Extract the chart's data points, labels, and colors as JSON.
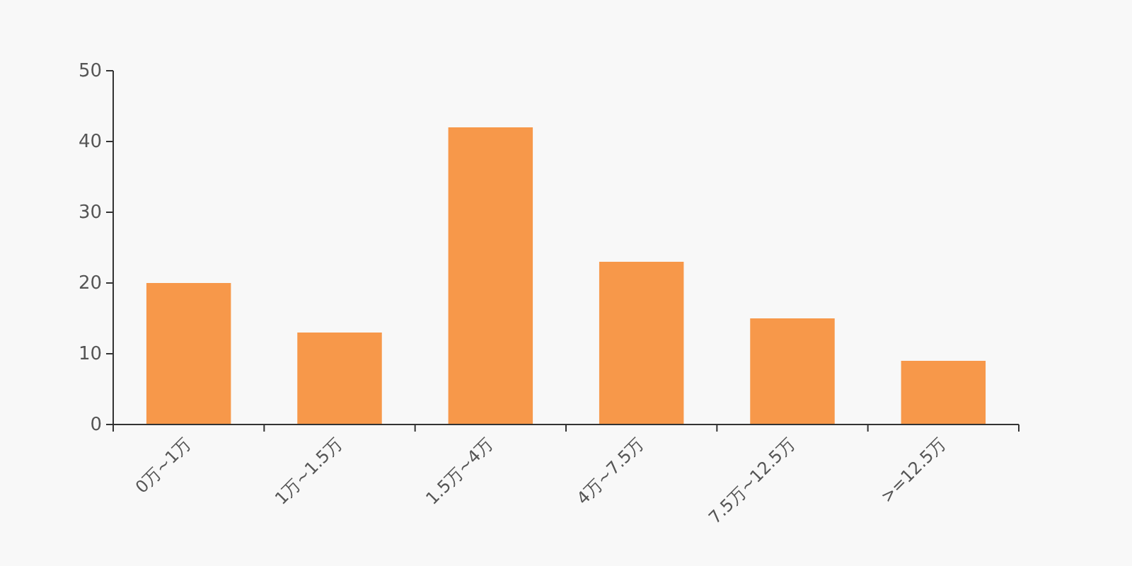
{
  "chart_data": {
    "type": "bar",
    "categories": [
      "0万~1万",
      "1万~1.5万",
      "1.5万~4万",
      "4万~7.5万",
      "7.5万~12.5万",
      ">=12.5万"
    ],
    "values": [
      20,
      13,
      42,
      23,
      15,
      9
    ],
    "color": "#f7984a",
    "ylim": [
      0,
      50
    ],
    "yticks": [
      0,
      10,
      20,
      30,
      40,
      50
    ],
    "grid": false
  }
}
